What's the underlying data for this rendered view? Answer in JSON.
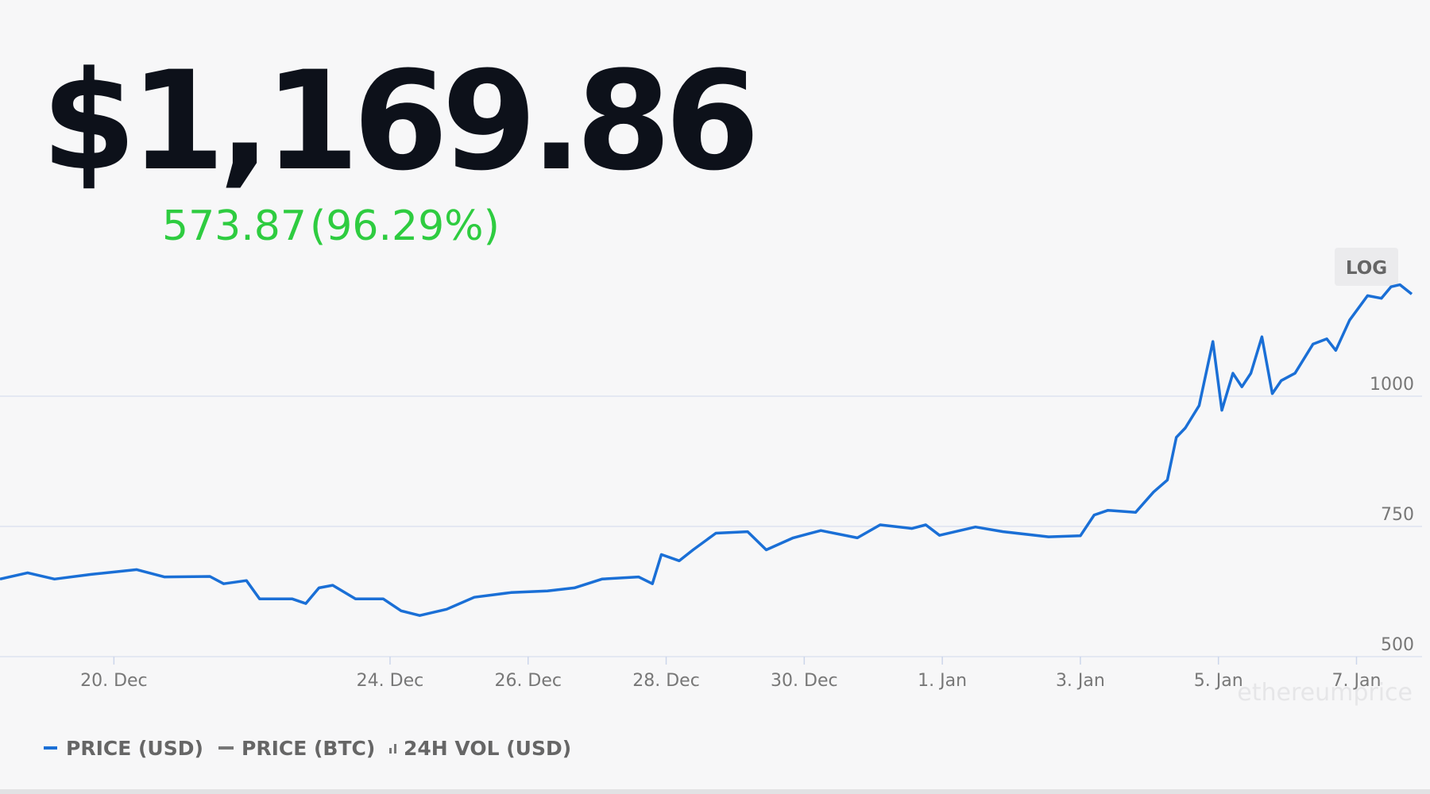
{
  "price": "$1,169.86",
  "change": "573.87",
  "change_pct": "(96.29%)",
  "log_button": "LOG",
  "watermark": "ethereumprice",
  "legend": [
    "PRICE (USD)",
    "PRICE (BTC)",
    "24H VOL (USD)"
  ],
  "chart_data": {
    "type": "line",
    "x": [
      18.35,
      18.75,
      19.14,
      19.67,
      20.33,
      20.73,
      21.39,
      21.59,
      21.92,
      22.11,
      22.58,
      22.78,
      22.97,
      23.17,
      23.5,
      23.9,
      24.16,
      24.43,
      24.82,
      25.22,
      25.75,
      26.28,
      26.67,
      27.07,
      27.6,
      27.8,
      27.93,
      28.19,
      28.39,
      28.72,
      29.18,
      29.45,
      29.84,
      30.24,
      30.77,
      31.1,
      31.56,
      31.76,
      31.96,
      32.48,
      32.88,
      33.54,
      34.0,
      34.2,
      34.4,
      34.8,
      35.06,
      35.26,
      35.39,
      35.52,
      35.72,
      35.92,
      36.05,
      36.21,
      36.34,
      36.47,
      36.63,
      36.78,
      36.91,
      37.11,
      37.37,
      37.57,
      37.7,
      37.9,
      38.16,
      38.36,
      38.5,
      38.63,
      38.8
    ],
    "series": [
      {
        "name": "PRICE (USD)",
        "color": "#1a6fd6",
        "values": [
          649,
          661,
          649,
          658,
          667,
          653,
          654,
          640,
          646,
          611,
          611,
          602,
          632,
          637,
          611,
          611,
          588,
          579,
          591,
          614,
          623,
          626,
          632,
          649,
          653,
          640,
          696,
          684,
          705,
          737,
          740,
          705,
          728,
          742,
          728,
          753,
          746,
          753,
          733,
          749,
          740,
          730,
          732,
          772,
          781,
          777,
          816,
          839,
          921,
          939,
          982,
          1105,
          973,
          1044,
          1018,
          1044,
          1114,
          1005,
          1030,
          1044,
          1100,
          1110,
          1088,
          1146,
          1193,
          1188,
          1210,
          1214,
          1196
        ]
      }
    ],
    "xlim": [
      18.35,
      38.8
    ],
    "ylim": [
      500,
      1250
    ],
    "xticks": [
      {
        "value": 20,
        "label": "20. Dec"
      },
      {
        "value": 24,
        "label": "24. Dec"
      },
      {
        "value": 26,
        "label": "26. Dec"
      },
      {
        "value": 28,
        "label": "28. Dec"
      },
      {
        "value": 30,
        "label": "30. Dec"
      },
      {
        "value": 32,
        "label": "1. Jan"
      },
      {
        "value": 34,
        "label": "3. Jan"
      },
      {
        "value": 36,
        "label": "5. Jan"
      },
      {
        "value": 38,
        "label": "7. Jan"
      }
    ],
    "yticks": [
      500,
      750,
      1000
    ],
    "grid": true
  }
}
